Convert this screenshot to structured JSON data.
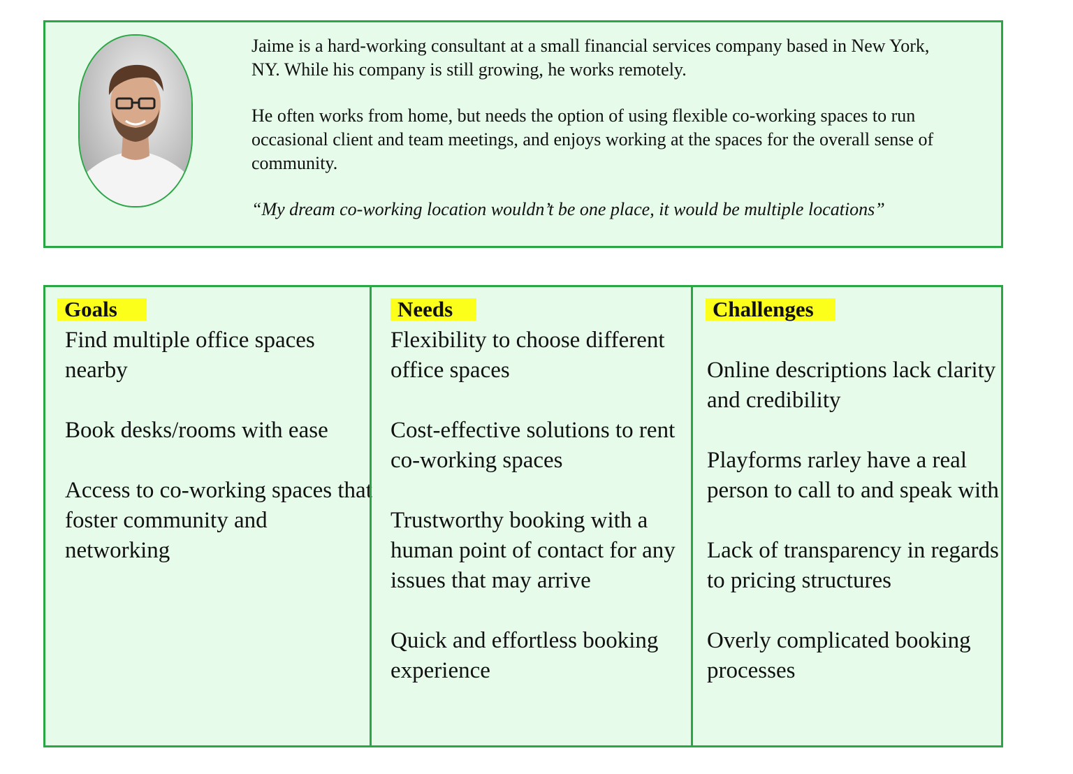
{
  "persona": {
    "bio": [
      "Jaime is a hard-working consultant at a small financial services company based in New York, NY. While his company is still growing, he works remotely.",
      "He often works from home, but needs the option of using flexible co-working spaces to run occasional client and team meetings, and enjoys working at the spaces for the overall sense of community."
    ],
    "quote": "“My dream co-working location wouldn’t be one place, it would be multiple locations”"
  },
  "columns": {
    "goals": {
      "heading": "Goals",
      "items": [
        "Find multiple office spaces nearby",
        "Book desks/rooms with ease",
        "Access to co-working spaces that foster community and networking"
      ]
    },
    "needs": {
      "heading": "Needs",
      "items": [
        "Flexibility to choose different office spaces",
        "Cost-effective solutions to rent co-working spaces",
        "Trustworthy booking with a human point of contact for any issues that may arrive",
        "Quick and effortless booking experience"
      ]
    },
    "challenges": {
      "heading": "Challenges",
      "items": [
        "Online descriptions lack clarity and credibility",
        "Playforms rarley have a real person to call to and speak with",
        "Lack of transparency in regards to pricing structures",
        "Overly complicated booking processes"
      ]
    }
  },
  "colors": {
    "card_background": "#e6fbea",
    "border_green": "#2aa644",
    "highlight_yellow": "#fbff1a"
  }
}
